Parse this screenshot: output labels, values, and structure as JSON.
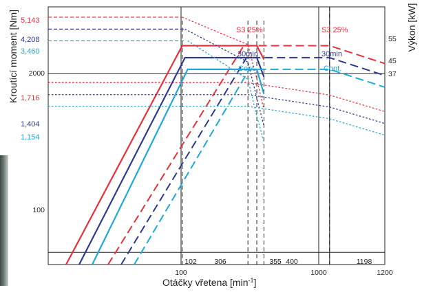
{
  "chart_data": {
    "type": "line",
    "xlabel_main": "Otáčky vřetena [min",
    "xlabel_sup": "-1",
    "xlabel_end": "]",
    "ylabel_left": "Kroutící moment [Nm]",
    "ylabel_right": "Výkon [kW]",
    "x_scale": "log",
    "y_scale": "log",
    "x_ticks": [
      "100",
      "1000",
      "1200"
    ],
    "y_ticks": [
      "100",
      "2000"
    ],
    "x_markers": [
      "102",
      "306",
      "355",
      "400",
      "1198"
    ],
    "torque_labels": [
      {
        "text": "5,143",
        "color": "#e8303a"
      },
      {
        "text": "4,208",
        "color": "#2b3a8f"
      },
      {
        "text": "3,460",
        "color": "#20a7d8"
      },
      {
        "text": "1,716",
        "color": "#e8303a"
      },
      {
        "text": "1,404",
        "color": "#2b3a8f"
      },
      {
        "text": "1,154",
        "color": "#20a7d8"
      }
    ],
    "power_labels": [
      "55",
      "45",
      "37"
    ],
    "colors": {
      "s3": "#e8303a",
      "min30": "#2b3a8f",
      "cont": "#20a7d8",
      "grid": "#222222"
    },
    "series": [
      {
        "name": "S3 25%",
        "color": "#e8303a",
        "power_kW": 55,
        "torque_Nm": 5143,
        "torque_low_Nm": 1716
      },
      {
        "name": "30min",
        "color": "#2b3a8f",
        "power_kW": 45,
        "torque_Nm": 4208,
        "torque_low_Nm": 1404
      },
      {
        "name": "Cont.",
        "color": "#20a7d8",
        "power_kW": 37,
        "torque_Nm": 3460,
        "torque_low_Nm": 1154
      }
    ],
    "series_labels": [
      "S3 25%",
      "S3 25%",
      "30min",
      "30min",
      "Cont.",
      "Cont."
    ],
    "grid": true
  }
}
